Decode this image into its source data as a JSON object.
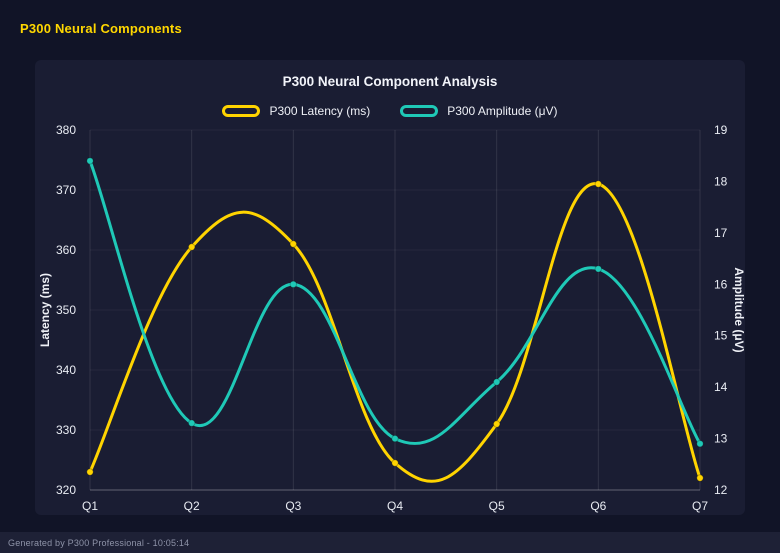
{
  "page": {
    "title": "P300 Neural Components",
    "footer": "Generated by P300 Professional - 10:05:14"
  },
  "chart_data": {
    "type": "line",
    "title": "P300 Neural Component Analysis",
    "categories": [
      "Q1",
      "Q2",
      "Q3",
      "Q4",
      "Q5",
      "Q6",
      "Q7"
    ],
    "series": [
      {
        "name": "P300 Latency (ms)",
        "axis": "left",
        "color": "#ffd400",
        "values": [
          323,
          360.5,
          361,
          324.5,
          331,
          371,
          322
        ]
      },
      {
        "name": "P300 Amplitude (μV)",
        "axis": "right",
        "color": "#1fc9b7",
        "values": [
          18.4,
          13.3,
          16.0,
          13.0,
          14.1,
          16.3,
          12.9
        ]
      }
    ],
    "left_axis": {
      "label": "Latency (ms)",
      "min": 320,
      "max": 380,
      "ticks": [
        320,
        330,
        340,
        350,
        360,
        370,
        380
      ]
    },
    "right_axis": {
      "label": "Amplitude (μV)",
      "min": 12,
      "max": 19,
      "ticks": [
        12,
        13,
        14,
        15,
        16,
        17,
        18,
        19
      ]
    },
    "x_axis": {
      "labels": [
        "Q1",
        "Q2",
        "Q3",
        "Q4",
        "Q5",
        "Q6",
        "Q7"
      ]
    },
    "grid": true,
    "legend_position": "top",
    "style": {
      "background": "#1a1d33",
      "page_background": "#111427",
      "accent": "#ffd700"
    }
  }
}
